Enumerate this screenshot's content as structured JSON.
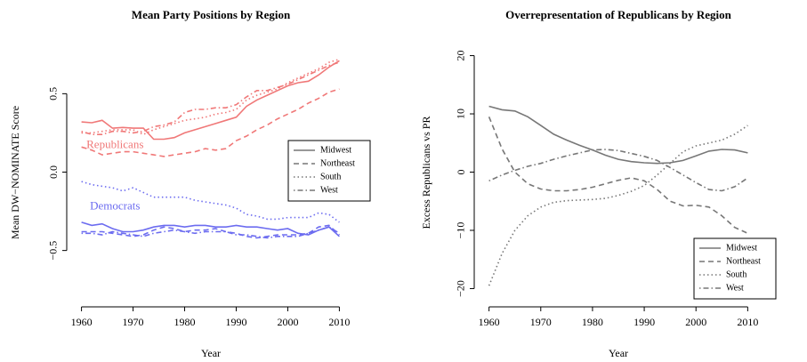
{
  "chart_data": [
    {
      "type": "line",
      "title": "Mean Party Positions by Region",
      "xlabel": "Year",
      "ylabel": "Mean DW−NOMINATE Score",
      "x": [
        1960,
        1962,
        1964,
        1966,
        1968,
        1970,
        1972,
        1974,
        1976,
        1978,
        1980,
        1982,
        1984,
        1986,
        1988,
        1990,
        1992,
        1994,
        1996,
        1998,
        2000,
        2002,
        2004,
        2006,
        2008,
        2010
      ],
      "xlim": [
        1958,
        2012
      ],
      "xticks": [
        1960,
        1970,
        1980,
        1990,
        2000,
        2010
      ],
      "ylim": [
        -0.78,
        0.78
      ],
      "yticks": [
        {
          "value": -0.5,
          "label": "−0.5"
        },
        {
          "value": 0,
          "label": "0.0"
        },
        0.5
      ],
      "legend_position": "right",
      "legend_color": "#777777",
      "groups": [
        {
          "name": "Republicans",
          "color": "#f07878",
          "series": [
            {
              "name": "Midwest",
              "dash": "solid",
              "values": [
                0.32,
                0.315,
                0.33,
                0.28,
                0.285,
                0.28,
                0.28,
                0.21,
                0.21,
                0.22,
                0.25,
                0.27,
                0.29,
                0.31,
                0.33,
                0.35,
                0.42,
                0.46,
                0.49,
                0.52,
                0.55,
                0.57,
                0.58,
                0.62,
                0.67,
                0.71
              ]
            },
            {
              "name": "Northeast",
              "dash": "dashed",
              "values": [
                0.16,
                0.14,
                0.11,
                0.12,
                0.13,
                0.13,
                0.12,
                0.11,
                0.1,
                0.11,
                0.12,
                0.13,
                0.15,
                0.14,
                0.15,
                0.2,
                0.23,
                0.27,
                0.3,
                0.34,
                0.37,
                0.4,
                0.44,
                0.47,
                0.51,
                0.53
              ]
            },
            {
              "name": "South",
              "dash": "dotted",
              "values": [
                0.25,
                0.25,
                0.26,
                0.27,
                0.27,
                0.27,
                0.24,
                0.27,
                0.29,
                0.31,
                0.33,
                0.34,
                0.35,
                0.37,
                0.38,
                0.4,
                0.46,
                0.49,
                0.51,
                0.53,
                0.57,
                0.6,
                0.63,
                0.66,
                0.7,
                0.72
              ]
            },
            {
              "name": "West",
              "dash": "dotdash",
              "values": [
                0.26,
                0.24,
                0.24,
                0.26,
                0.26,
                0.25,
                0.26,
                0.29,
                0.3,
                0.32,
                0.38,
                0.4,
                0.4,
                0.41,
                0.41,
                0.43,
                0.48,
                0.52,
                0.52,
                0.54,
                0.56,
                0.59,
                0.62,
                0.65,
                0.68,
                0.7
              ]
            }
          ]
        },
        {
          "name": "Democrats",
          "color": "#6c6cf0",
          "series": [
            {
              "name": "Midwest",
              "dash": "solid",
              "values": [
                -0.32,
                -0.34,
                -0.33,
                -0.36,
                -0.38,
                -0.38,
                -0.37,
                -0.35,
                -0.34,
                -0.34,
                -0.35,
                -0.34,
                -0.34,
                -0.35,
                -0.35,
                -0.34,
                -0.35,
                -0.35,
                -0.36,
                -0.37,
                -0.36,
                -0.39,
                -0.4,
                -0.37,
                -0.35,
                -0.41
              ]
            },
            {
              "name": "Northeast",
              "dash": "dashed",
              "values": [
                -0.38,
                -0.38,
                -0.38,
                -0.39,
                -0.4,
                -0.41,
                -0.4,
                -0.37,
                -0.35,
                -0.36,
                -0.38,
                -0.37,
                -0.37,
                -0.36,
                -0.38,
                -0.39,
                -0.41,
                -0.42,
                -0.41,
                -0.4,
                -0.4,
                -0.4,
                -0.39,
                -0.35,
                -0.34,
                -0.4
              ]
            },
            {
              "name": "South",
              "dash": "dotted",
              "values": [
                -0.06,
                -0.08,
                -0.09,
                -0.1,
                -0.12,
                -0.1,
                -0.13,
                -0.16,
                -0.16,
                -0.16,
                -0.16,
                -0.18,
                -0.19,
                -0.2,
                -0.21,
                -0.23,
                -0.27,
                -0.28,
                -0.3,
                -0.3,
                -0.29,
                -0.29,
                -0.29,
                -0.26,
                -0.27,
                -0.32
              ]
            },
            {
              "name": "West",
              "dash": "dotdash",
              "values": [
                -0.39,
                -0.39,
                -0.4,
                -0.38,
                -0.39,
                -0.4,
                -0.41,
                -0.39,
                -0.38,
                -0.37,
                -0.38,
                -0.39,
                -0.38,
                -0.38,
                -0.38,
                -0.4,
                -0.4,
                -0.41,
                -0.42,
                -0.41,
                -0.41,
                -0.41,
                -0.39,
                -0.37,
                -0.35,
                -0.39
              ]
            }
          ]
        }
      ]
    },
    {
      "type": "line",
      "title": "Overrepresentation of Republicans by Region",
      "xlabel": "Year",
      "ylabel": "Excess Republicans vs PR",
      "x": [
        1960,
        1962.5,
        1965,
        1967.5,
        1970,
        1972.5,
        1975,
        1977.5,
        1980,
        1982.5,
        1985,
        1987.5,
        1990,
        1992.5,
        1995,
        1997.5,
        2000,
        2002.5,
        2005,
        2007.5,
        2010
      ],
      "xlim": [
        1958,
        2012
      ],
      "xticks": [
        1960,
        1970,
        1980,
        1990,
        2000,
        2010
      ],
      "ylim": [
        -21,
        21
      ],
      "yticks": [
        {
          "value": -20,
          "label": "−20"
        },
        {
          "value": -10,
          "label": "−10"
        },
        0,
        10,
        20
      ],
      "legend_position": "bottom-right",
      "color": "#777777",
      "series": [
        {
          "name": "Midwest",
          "dash": "solid",
          "values": [
            11.3,
            10.7,
            10.5,
            9.5,
            8,
            6.5,
            5.5,
            4.6,
            3.8,
            2.9,
            2.2,
            1.8,
            1.6,
            1.5,
            1.6,
            2,
            2.8,
            3.6,
            3.9,
            3.8,
            3.3
          ]
        },
        {
          "name": "Northeast",
          "dash": "dashed",
          "values": [
            9.5,
            4,
            0,
            -2,
            -2.9,
            -3.2,
            -3.2,
            -3,
            -2.6,
            -2,
            -1.4,
            -1,
            -1.5,
            -3,
            -5,
            -5.8,
            -5.7,
            -6,
            -7.5,
            -9.5,
            -10.5
          ]
        },
        {
          "name": "South",
          "dash": "dotted",
          "values": [
            -19.5,
            -14,
            -10,
            -7.5,
            -6,
            -5.2,
            -4.9,
            -4.8,
            -4.7,
            -4.5,
            -4,
            -3.3,
            -2.3,
            -0.5,
            1.5,
            3.5,
            4.5,
            5,
            5.5,
            6.5,
            8
          ]
        },
        {
          "name": "West",
          "dash": "dotdash",
          "values": [
            -1.5,
            -0.5,
            0.3,
            1,
            1.5,
            2.2,
            2.8,
            3.3,
            3.8,
            3.9,
            3.7,
            3.2,
            2.7,
            2,
            0.8,
            -0.5,
            -1.8,
            -3,
            -3.2,
            -2.5,
            -1
          ]
        }
      ]
    }
  ]
}
